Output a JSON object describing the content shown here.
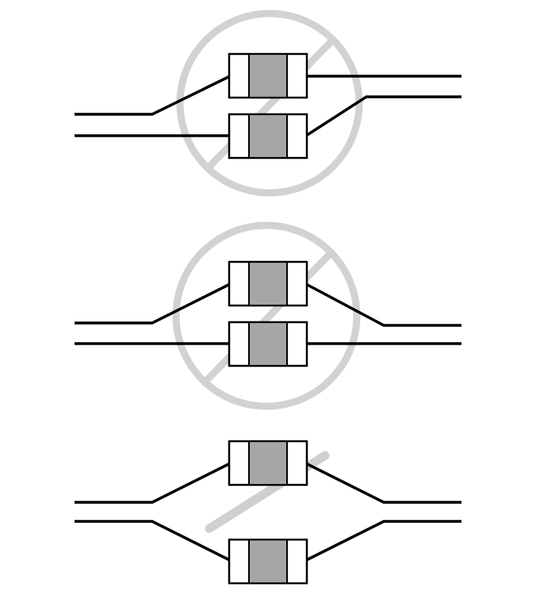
{
  "colors": {
    "background": "#ffffff",
    "trace": "#000000",
    "chip_outline": "#000000",
    "chip_end": "#ffffff",
    "chip_core": "#a6a6a6",
    "forbidden_mark": "#d2d2d2",
    "strike_mark": "#cfcfcf"
  },
  "figures": [
    {
      "id": "layout-crossed-traces",
      "components": 2,
      "marker": "prohibited-circle-icon",
      "verdict": "not-recommended"
    },
    {
      "id": "layout-adjacent-traces",
      "components": 2,
      "marker": "prohibited-circle-icon",
      "verdict": "not-recommended"
    },
    {
      "id": "layout-spread-traces",
      "components": 2,
      "marker": "slash-mark-icon",
      "verdict": "recommended"
    }
  ]
}
